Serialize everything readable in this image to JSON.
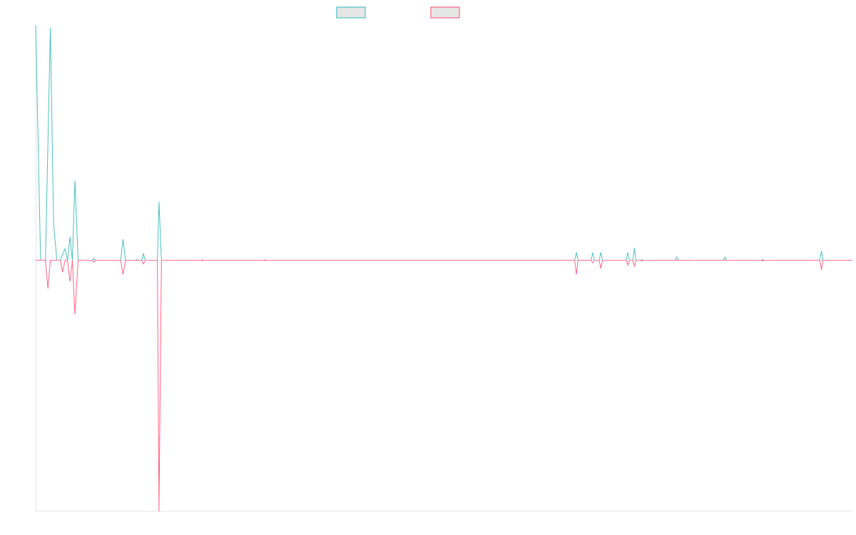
{
  "chart_data": {
    "type": "line",
    "title": "",
    "xlabel": "",
    "ylabel": "",
    "x_range": [
      0,
      100
    ],
    "ylim": [
      -1,
      1
    ],
    "grid": false,
    "legend_position": "top-center",
    "series": [
      {
        "color": "#4bc0c0",
        "fill": "#e6e6e6",
        "points": [
          [
            0,
            1.0
          ],
          [
            0.6,
            0
          ],
          [
            1.2,
            0
          ],
          [
            1.8,
            0.99
          ],
          [
            2.2,
            0.15
          ],
          [
            2.6,
            0
          ],
          [
            3.0,
            0
          ],
          [
            3.6,
            0.05
          ],
          [
            3.9,
            0
          ],
          [
            4.2,
            0.1
          ],
          [
            4.5,
            0
          ],
          [
            4.8,
            0.34
          ],
          [
            5.2,
            0
          ],
          [
            6.9,
            0
          ],
          [
            7.1,
            0.008
          ],
          [
            7.3,
            0
          ],
          [
            10.4,
            0
          ],
          [
            10.7,
            0.09
          ],
          [
            11.0,
            0
          ],
          [
            12.2,
            0
          ],
          [
            12.4,
            0.003
          ],
          [
            12.6,
            0
          ],
          [
            13.0,
            0
          ],
          [
            13.2,
            0.03
          ],
          [
            13.4,
            0
          ],
          [
            14.9,
            0
          ],
          [
            15.1,
            0.25
          ],
          [
            15.4,
            0
          ],
          [
            20.2,
            0
          ],
          [
            20.4,
            0.002
          ],
          [
            20.6,
            0
          ],
          [
            27.9,
            0
          ],
          [
            28.1,
            0.002
          ],
          [
            28.3,
            0
          ],
          [
            66.0,
            0
          ],
          [
            66.2,
            0.034
          ],
          [
            66.4,
            0
          ],
          [
            68.0,
            0
          ],
          [
            68.2,
            0.033
          ],
          [
            68.4,
            0
          ],
          [
            69.0,
            0
          ],
          [
            69.2,
            0.035
          ],
          [
            69.4,
            0
          ],
          [
            72.3,
            0
          ],
          [
            72.5,
            0.034
          ],
          [
            72.7,
            0
          ],
          [
            73.1,
            0
          ],
          [
            73.3,
            0.053
          ],
          [
            73.5,
            0
          ],
          [
            74.0,
            0
          ],
          [
            74.2,
            0.003
          ],
          [
            74.4,
            0
          ],
          [
            78.3,
            0
          ],
          [
            78.5,
            0.015
          ],
          [
            78.7,
            0
          ],
          [
            80.0,
            0
          ],
          [
            80.1,
            0.001
          ],
          [
            80.2,
            0
          ],
          [
            84.2,
            0
          ],
          [
            84.4,
            0.014
          ],
          [
            84.6,
            0
          ],
          [
            88.8,
            0
          ],
          [
            89.0,
            0.003
          ],
          [
            89.2,
            0
          ],
          [
            96.0,
            0
          ],
          [
            96.2,
            0.04
          ],
          [
            96.4,
            0
          ],
          [
            100,
            0
          ]
        ]
      },
      {
        "color": "#ff6384",
        "fill": "#e6e6e6",
        "points": [
          [
            0,
            0
          ],
          [
            1.2,
            0
          ],
          [
            1.5,
            -0.12
          ],
          [
            1.8,
            0
          ],
          [
            3.0,
            0
          ],
          [
            3.3,
            -0.05
          ],
          [
            3.6,
            0
          ],
          [
            3.9,
            0
          ],
          [
            4.2,
            -0.09
          ],
          [
            4.5,
            0
          ],
          [
            4.8,
            -0.23
          ],
          [
            5.2,
            0
          ],
          [
            6.9,
            0
          ],
          [
            7.1,
            -0.008
          ],
          [
            7.3,
            0
          ],
          [
            10.4,
            0
          ],
          [
            10.7,
            -0.06
          ],
          [
            11.0,
            0
          ],
          [
            13.0,
            0
          ],
          [
            13.2,
            -0.015
          ],
          [
            13.4,
            0
          ],
          [
            14.9,
            0
          ],
          [
            15.1,
            -1.07
          ],
          [
            15.4,
            0
          ],
          [
            66.0,
            0
          ],
          [
            66.2,
            -0.06
          ],
          [
            66.4,
            0
          ],
          [
            68.0,
            0
          ],
          [
            68.2,
            -0.01
          ],
          [
            68.4,
            0
          ],
          [
            69.0,
            0
          ],
          [
            69.2,
            -0.035
          ],
          [
            69.4,
            0
          ],
          [
            72.3,
            0
          ],
          [
            72.5,
            -0.02
          ],
          [
            72.7,
            0
          ],
          [
            73.1,
            0
          ],
          [
            73.3,
            -0.025
          ],
          [
            73.5,
            0
          ],
          [
            74.0,
            0
          ],
          [
            74.2,
            -0.002
          ],
          [
            74.4,
            0
          ],
          [
            88.8,
            0
          ],
          [
            89.0,
            -0.002
          ],
          [
            89.2,
            0
          ],
          [
            96.0,
            0
          ],
          [
            96.2,
            -0.04
          ],
          [
            96.4,
            0
          ],
          [
            100,
            0
          ]
        ]
      }
    ]
  }
}
